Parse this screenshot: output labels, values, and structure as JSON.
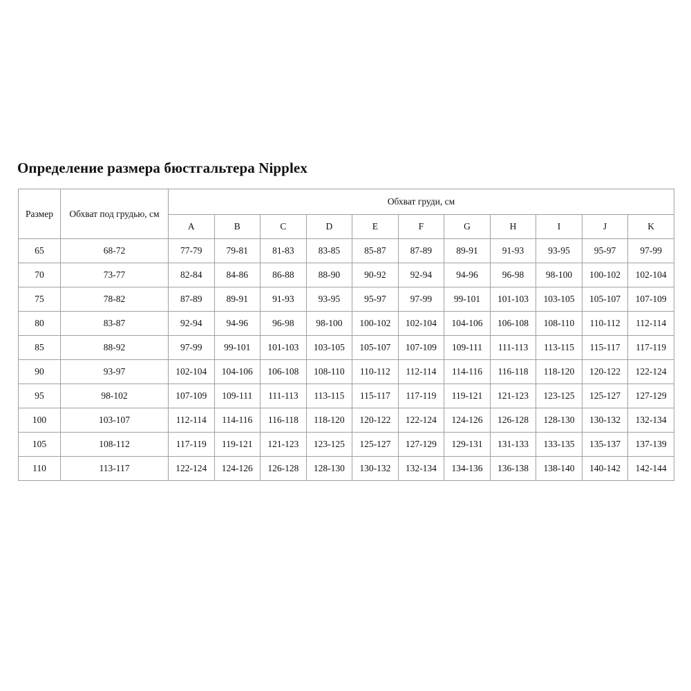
{
  "title": "Определение размера бюстгальтера Nipplex",
  "table": {
    "headers": {
      "size": "Размер",
      "underbust": "Обхват под грудью, см",
      "bust": "Обхват груди, см",
      "cups": [
        "A",
        "B",
        "C",
        "D",
        "E",
        "F",
        "G",
        "H",
        "I",
        "J",
        "K"
      ]
    },
    "rows": [
      {
        "size": "65",
        "underbust": "68-72",
        "cups": [
          "77-79",
          "79-81",
          "81-83",
          "83-85",
          "85-87",
          "87-89",
          "89-91",
          "91-93",
          "93-95",
          "95-97",
          "97-99"
        ]
      },
      {
        "size": "70",
        "underbust": "73-77",
        "cups": [
          "82-84",
          "84-86",
          "86-88",
          "88-90",
          "90-92",
          "92-94",
          "94-96",
          "96-98",
          "98-100",
          "100-102",
          "102-104"
        ]
      },
      {
        "size": "75",
        "underbust": "78-82",
        "cups": [
          "87-89",
          "89-91",
          "91-93",
          "93-95",
          "95-97",
          "97-99",
          "99-101",
          "101-103",
          "103-105",
          "105-107",
          "107-109"
        ]
      },
      {
        "size": "80",
        "underbust": "83-87",
        "cups": [
          "92-94",
          "94-96",
          "96-98",
          "98-100",
          "100-102",
          "102-104",
          "104-106",
          "106-108",
          "108-110",
          "110-112",
          "112-114"
        ]
      },
      {
        "size": "85",
        "underbust": "88-92",
        "cups": [
          "97-99",
          "99-101",
          "101-103",
          "103-105",
          "105-107",
          "107-109",
          "109-111",
          "111-113",
          "113-115",
          "115-117",
          "117-119"
        ]
      },
      {
        "size": "90",
        "underbust": "93-97",
        "cups": [
          "102-104",
          "104-106",
          "106-108",
          "108-110",
          "110-112",
          "112-114",
          "114-116",
          "116-118",
          "118-120",
          "120-122",
          "122-124"
        ]
      },
      {
        "size": "95",
        "underbust": "98-102",
        "cups": [
          "107-109",
          "109-111",
          "111-113",
          "113-115",
          "115-117",
          "117-119",
          "119-121",
          "121-123",
          "123-125",
          "125-127",
          "127-129"
        ]
      },
      {
        "size": "100",
        "underbust": "103-107",
        "cups": [
          "112-114",
          "114-116",
          "116-118",
          "118-120",
          "120-122",
          "122-124",
          "124-126",
          "126-128",
          "128-130",
          "130-132",
          "132-134"
        ]
      },
      {
        "size": "105",
        "underbust": "108-112",
        "cups": [
          "117-119",
          "119-121",
          "121-123",
          "123-125",
          "125-127",
          "127-129",
          "129-131",
          "131-133",
          "133-135",
          "135-137",
          "137-139"
        ]
      },
      {
        "size": "110",
        "underbust": "113-117",
        "cups": [
          "122-124",
          "124-126",
          "126-128",
          "128-130",
          "130-132",
          "132-134",
          "134-136",
          "136-138",
          "138-140",
          "140-142",
          "142-144"
        ]
      }
    ]
  }
}
